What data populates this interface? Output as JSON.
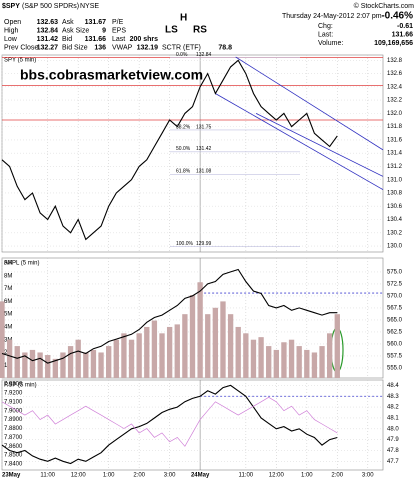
{
  "header": {
    "symbol": "$SPY",
    "name": "(S&P 500 SPDRs)",
    "exchange": "NYSE",
    "credit": "© StockCharts.com",
    "date": "Thursday  24-May-2012  2:07 pm",
    "change_pct": "-0.46%",
    "quote": [
      [
        [
          "Open",
          "132.63"
        ],
        [
          "Ask",
          "131.67"
        ],
        [
          "P/E"
        ]
      ],
      [
        [
          "High",
          "132.84"
        ],
        [
          "Ask Size",
          "9"
        ],
        [
          "EPS"
        ]
      ],
      [
        [
          "Low",
          "131.42"
        ],
        [
          "Bid",
          "131.66"
        ],
        [
          "Last",
          "200 shrs"
        ]
      ],
      [
        [
          "Prev Close",
          "132.27"
        ],
        [
          "Bid Size",
          "136"
        ],
        [
          "VWAP",
          "132.19"
        ],
        [
          "SCTR (ETF)",
          "78.8"
        ]
      ]
    ],
    "summary": [
      [
        "Chg:",
        "-0.61"
      ],
      [
        "Last:",
        "131.66"
      ],
      [
        "Volume:",
        "109,169,656"
      ]
    ]
  },
  "chart_data": [
    {
      "type": "line",
      "title": "SPY (5 min)",
      "watermark": "bbs.cobrasmarketview.com",
      "pattern_labels": [
        "LS",
        "H",
        "RS"
      ],
      "x": [
        0,
        3,
        6,
        9,
        12,
        15,
        18,
        21,
        24,
        27,
        30,
        33,
        36,
        39,
        42,
        45,
        48,
        51,
        54,
        57,
        60,
        63,
        66,
        69,
        72,
        75,
        78,
        81,
        84,
        87,
        90,
        93,
        96,
        99,
        102,
        105,
        108,
        111,
        114,
        117,
        120,
        123,
        126,
        129,
        132
      ],
      "xlim": [
        0,
        150
      ],
      "series": [
        {
          "name": "SPY",
          "color": "#000000",
          "values": [
            131.3,
            131.2,
            130.9,
            130.7,
            130.8,
            130.5,
            130.4,
            130.6,
            130.3,
            130.2,
            130.4,
            130.1,
            130.2,
            130.3,
            130.6,
            130.8,
            130.9,
            131.0,
            131.2,
            131.3,
            131.5,
            131.7,
            131.9,
            131.8,
            132.0,
            132.1,
            132.4,
            132.6,
            132.3,
            132.5,
            132.7,
            132.8,
            132.6,
            132.3,
            132.1,
            132.0,
            131.9,
            132.0,
            131.8,
            131.9,
            132.0,
            131.7,
            131.6,
            131.5,
            131.66
          ]
        }
      ],
      "ylim": [
        129.91,
        132.88
      ],
      "yticks": [
        {
          "value": 130,
          "label": "130.0"
        },
        130.2,
        130.4,
        130.6,
        130.8,
        {
          "value": 131,
          "label": "131.0"
        },
        131.2,
        131.4,
        131.6,
        131.8,
        {
          "value": 132,
          "label": "132.0"
        },
        132.2,
        132.4,
        132.6,
        132.8
      ],
      "fib_levels": [
        {
          "label": "0.0%",
          "value": 132.84
        },
        {
          "label": "38.2%",
          "value": 131.75
        },
        {
          "label": "50.0%",
          "value": 131.42
        },
        {
          "label": "61.8%",
          "value": 131.08
        },
        {
          "label": "100.0%",
          "value": 129.99
        }
      ],
      "resistance": [
        132.84,
        132.42,
        131.9
      ],
      "trendlines": [
        {
          "x": [
            92,
            150
          ],
          "y": [
            132.85,
            131.45
          ]
        },
        {
          "x": [
            100,
            150
          ],
          "y": [
            132.0,
            131.05
          ]
        },
        {
          "x": [
            84,
            150
          ],
          "y": [
            132.3,
            130.85
          ]
        }
      ]
    },
    {
      "type": "line",
      "title": "AAPL (5 min)",
      "x": [
        0,
        3,
        6,
        9,
        12,
        15,
        18,
        21,
        24,
        27,
        30,
        33,
        36,
        39,
        42,
        45,
        48,
        51,
        54,
        57,
        60,
        63,
        66,
        69,
        72,
        75,
        78,
        81,
        84,
        87,
        90,
        93,
        96,
        99,
        102,
        105,
        108,
        111,
        114,
        117,
        120,
        123,
        126,
        129,
        132
      ],
      "xlim": [
        0,
        150
      ],
      "series": [
        {
          "name": "AAPL",
          "color": "#000000",
          "values": [
            558,
            557.5,
            557,
            557.5,
            556.5,
            557,
            556,
            556.5,
            557,
            558,
            558.5,
            558,
            559,
            559.5,
            560.5,
            561,
            561.5,
            562,
            563,
            564.5,
            565.5,
            566,
            567,
            568,
            569.5,
            570,
            571,
            572.5,
            573,
            574.5,
            575,
            575.5,
            573,
            571,
            570.5,
            568,
            567.5,
            568,
            567,
            567.5,
            567,
            566.5,
            566,
            566.5,
            566.5
          ]
        },
        {
          "name": "Volume",
          "type": "bar",
          "axis": "y2",
          "color": "#c8a8a8",
          "values": [
            6000000,
            3000000,
            2500000,
            2000000,
            2200000,
            2000000,
            1800000,
            1500000,
            2000000,
            2500000,
            3000000,
            2000000,
            2200000,
            2000000,
            2500000,
            3000000,
            3500000,
            3000000,
            3500000,
            4000000,
            4500000,
            3500000,
            4000000,
            4200000,
            5000000,
            6500000,
            7500000,
            5000000,
            5500000,
            6000000,
            5000000,
            4000000,
            3500000,
            3000000,
            3200000,
            2500000,
            2200000,
            2800000,
            3000000,
            2500000,
            2200000,
            2000000,
            2500000,
            3500000,
            5000000
          ]
        }
      ],
      "ylim": [
        552.9,
        577.9
      ],
      "yticks": [
        {
          "value": 555,
          "label": "555.0"
        },
        557.5,
        {
          "value": 560,
          "label": "560.0"
        },
        562.5,
        {
          "value": 565,
          "label": "565.0"
        },
        567.5,
        {
          "value": 570,
          "label": "570.0"
        },
        572.5,
        {
          "value": 575,
          "label": "575.0"
        }
      ],
      "y2lim": [
        0,
        9400000
      ],
      "y2ticks": [
        {
          "value": 1000000,
          "label": "1M"
        },
        {
          "value": 2000000,
          "label": "2M"
        },
        {
          "value": 3000000,
          "label": "3M"
        },
        {
          "value": 4000000,
          "label": "4M"
        },
        {
          "value": 5000000,
          "label": "5M"
        },
        {
          "value": 6000000,
          "label": "6M"
        },
        {
          "value": 7000000,
          "label": "7M"
        },
        {
          "value": 8000000,
          "label": "8M"
        },
        {
          "value": 9000000,
          "label": "9M"
        }
      ],
      "resistance": [
        570.6
      ]
    },
    {
      "type": "line",
      "title": "RSP (5 min)",
      "x": [
        0,
        3,
        6,
        9,
        12,
        15,
        18,
        21,
        24,
        27,
        30,
        33,
        36,
        39,
        42,
        45,
        48,
        51,
        54,
        57,
        60,
        63,
        66,
        69,
        72,
        75,
        78,
        81,
        84,
        87,
        90,
        93,
        96,
        99,
        102,
        105,
        108,
        111,
        114,
        117,
        120,
        123,
        126,
        129,
        132
      ],
      "xlim": [
        0,
        150
      ],
      "series": [
        {
          "name": "RSP",
          "color": "#000000",
          "values": [
            47.85,
            47.8,
            47.78,
            47.8,
            47.75,
            47.72,
            47.7,
            47.73,
            47.7,
            47.68,
            47.72,
            47.7,
            47.74,
            47.78,
            47.85,
            47.9,
            47.95,
            48.0,
            48.02,
            48.05,
            48.1,
            48.15,
            48.18,
            48.2,
            48.25,
            48.28,
            48.3,
            48.35,
            48.32,
            48.38,
            48.4,
            48.35,
            48.3,
            48.2,
            48.1,
            48.05,
            48.0,
            48.02,
            47.98,
            48.0,
            47.95,
            47.92,
            47.85,
            47.9,
            47.92
          ]
        },
        {
          "name": "Ratio",
          "axis": "y2",
          "color": "#d080d8",
          "values": [
            7.91,
            7.905,
            7.9,
            7.895,
            7.9,
            7.89,
            7.895,
            7.885,
            7.89,
            7.895,
            7.9,
            7.905,
            7.9,
            7.895,
            7.89,
            7.885,
            7.88,
            7.885,
            7.875,
            7.88,
            7.87,
            7.875,
            7.865,
            7.87,
            7.86,
            7.875,
            7.89,
            7.9,
            7.91,
            7.905,
            7.9,
            7.895,
            7.9,
            7.905,
            7.91,
            7.915,
            7.91,
            7.9,
            7.905,
            7.895,
            7.9,
            7.89,
            7.885,
            7.88,
            7.875
          ]
        }
      ],
      "ylim": [
        47.62,
        48.45
      ],
      "yticks": [
        47.7,
        47.8,
        47.9,
        {
          "value": 48,
          "label": "48.0"
        },
        48.1,
        48.2,
        48.3,
        48.4
      ],
      "y2lim": [
        7.8333,
        7.9345
      ],
      "y2ticks": [
        {
          "value": 7.84,
          "label": "7.8400"
        },
        {
          "value": 7.85,
          "label": "7.8500"
        },
        {
          "value": 7.86,
          "label": "7.8600"
        },
        {
          "value": 7.87,
          "label": "7.8700"
        },
        {
          "value": 7.88,
          "label": "7.8800"
        },
        {
          "value": 7.89,
          "label": "7.8900"
        },
        {
          "value": 7.9,
          "label": "7.9000"
        },
        {
          "value": 7.91,
          "label": "7.9100"
        },
        {
          "value": 7.92,
          "label": "7.9200"
        },
        {
          "value": 7.93,
          "label": "7.9300"
        }
      ],
      "resistance": [
        48.3
      ],
      "xticks": [
        {
          "value": 0,
          "label": "23May"
        },
        {
          "value": 18,
          "label": "11:00"
        },
        {
          "value": 30,
          "label": "12:00"
        },
        {
          "value": 42,
          "label": "1:00"
        },
        {
          "value": 54,
          "label": "2:00"
        },
        {
          "value": 66,
          "label": "3:00"
        },
        {
          "value": 78,
          "label": "24May"
        },
        {
          "value": 96,
          "label": "11:00"
        },
        {
          "value": 108,
          "label": "12:00"
        },
        {
          "value": 120,
          "label": "1:00"
        },
        {
          "value": 132,
          "label": "2:00"
        },
        {
          "value": 144,
          "label": "3:00"
        }
      ]
    }
  ]
}
